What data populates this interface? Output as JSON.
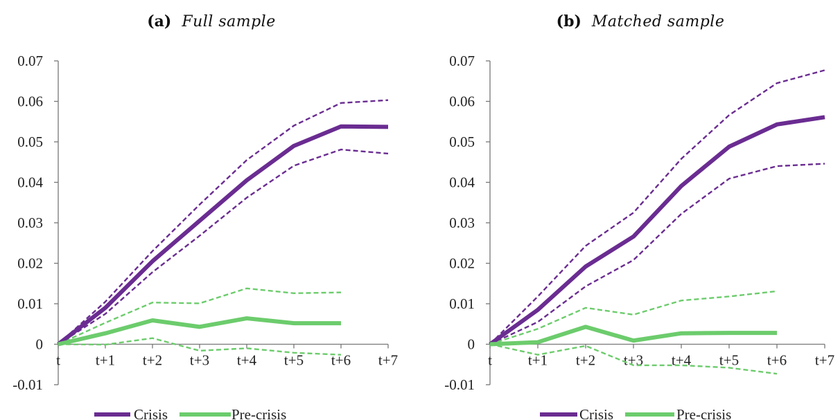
{
  "chart_data": [
    {
      "type": "line",
      "panel": "a",
      "title_letter": "(a)",
      "title": "Full sample",
      "xlabel": "",
      "ylabel": "",
      "categories": [
        "t",
        "t+1",
        "t+2",
        "t+3",
        "t+4",
        "t+5",
        "t+6",
        "t+7"
      ],
      "ylim": [
        -0.01,
        0.07
      ],
      "yticks": [
        "0.07",
        "0.06",
        "0.05",
        "0.04",
        "0.03",
        "0.02",
        "0.01",
        "0",
        "-0.01"
      ],
      "grid": false,
      "legend_position": "bottom",
      "series": [
        {
          "name": "Crisis",
          "role": "estimate",
          "group": "crisis",
          "values": [
            0,
            0.009,
            0.0205,
            0.0305,
            0.0405,
            0.049,
            0.0538,
            0.0537
          ]
        },
        {
          "name": "",
          "role": "upper",
          "group": "crisis",
          "values": [
            0,
            0.0105,
            0.023,
            0.0345,
            0.0455,
            0.054,
            0.0596,
            0.0603
          ]
        },
        {
          "name": "",
          "role": "lower",
          "group": "crisis",
          "values": [
            0,
            0.0075,
            0.0178,
            0.0268,
            0.0362,
            0.0441,
            0.0481,
            0.0471
          ]
        },
        {
          "name": "Pre-crisis",
          "role": "estimate",
          "group": "precrisis",
          "values": [
            0,
            0.0027,
            0.0059,
            0.0043,
            0.0064,
            0.0052,
            0.0052,
            null
          ]
        },
        {
          "name": "",
          "role": "upper",
          "group": "precrisis",
          "values": [
            0,
            0.0053,
            0.0103,
            0.0101,
            0.0138,
            0.0126,
            0.0128,
            null
          ]
        },
        {
          "name": "",
          "role": "lower",
          "group": "precrisis",
          "values": [
            0,
            -0.0001,
            0.0015,
            -0.0016,
            -0.001,
            -0.0021,
            -0.0026,
            null
          ]
        }
      ]
    },
    {
      "type": "line",
      "panel": "b",
      "title_letter": "(b)",
      "title": "Matched sample",
      "xlabel": "",
      "ylabel": "",
      "categories": [
        "t",
        "t+1",
        "t+2",
        "t+3",
        "t+4",
        "t+5",
        "t+6",
        "t+7"
      ],
      "ylim": [
        -0.01,
        0.07
      ],
      "yticks": [
        "0.07",
        "0.06",
        "0.05",
        "0.04",
        "0.03",
        "0.02",
        "0.01",
        "0",
        "-0.01"
      ],
      "grid": false,
      "legend_position": "bottom",
      "series": [
        {
          "name": "Crisis",
          "role": "estimate",
          "group": "crisis",
          "values": [
            0,
            0.0085,
            0.0192,
            0.0266,
            0.0391,
            0.0488,
            0.0543,
            0.0561
          ]
        },
        {
          "name": "",
          "role": "upper",
          "group": "crisis",
          "values": [
            0,
            0.0118,
            0.0243,
            0.0325,
            0.0458,
            0.0566,
            0.0645,
            0.0677
          ]
        },
        {
          "name": "",
          "role": "lower",
          "group": "crisis",
          "values": [
            0,
            0.0055,
            0.0143,
            0.0208,
            0.0322,
            0.0409,
            0.044,
            0.0446
          ]
        },
        {
          "name": "Pre-crisis",
          "role": "estimate",
          "group": "precrisis",
          "values": [
            0,
            0.0005,
            0.0043,
            0.0009,
            0.0027,
            0.0028,
            0.0028,
            null
          ]
        },
        {
          "name": "",
          "role": "upper",
          "group": "precrisis",
          "values": [
            0,
            0.0038,
            0.009,
            0.0073,
            0.0108,
            0.0118,
            0.0131,
            null
          ]
        },
        {
          "name": "",
          "role": "lower",
          "group": "precrisis",
          "values": [
            0,
            -0.0026,
            -0.0004,
            -0.0052,
            -0.0052,
            -0.0058,
            -0.0073,
            null
          ]
        }
      ]
    }
  ],
  "colors": {
    "crisis": "#6a2c91",
    "precrisis": "#6ccc6c",
    "axis": "#777777"
  },
  "legend": {
    "crisis_label": "Crisis",
    "precrisis_label": "Pre-crisis"
  }
}
